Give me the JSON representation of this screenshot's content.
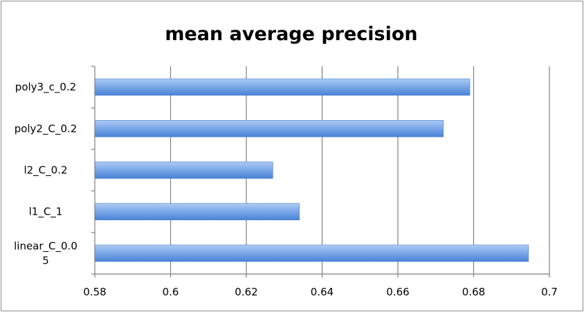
{
  "chart_data": {
    "type": "bar",
    "orientation": "horizontal",
    "title": "mean average precision",
    "xlabel": "",
    "ylabel": "",
    "categories": [
      "poly3_c_0.2",
      "poly2_C_0.2",
      "l2_C_0.2",
      "l1_C_1",
      "linear_C_0.05"
    ],
    "category_display": [
      [
        "poly3_c_0.2"
      ],
      [
        "poly2_C_0.2"
      ],
      [
        "l2_C_0.2"
      ],
      [
        "l1_C_1"
      ],
      [
        "linear_C_0.0",
        "5"
      ]
    ],
    "values": [
      0.679,
      0.672,
      0.627,
      0.634,
      0.6945
    ],
    "xlim": [
      0.58,
      0.7
    ],
    "xticks": [
      "0.58",
      "0.6",
      "0.62",
      "0.64",
      "0.66",
      "0.68",
      "0.7"
    ],
    "grid": "vertical",
    "legend": "none",
    "bar_color": "#5b93de"
  }
}
